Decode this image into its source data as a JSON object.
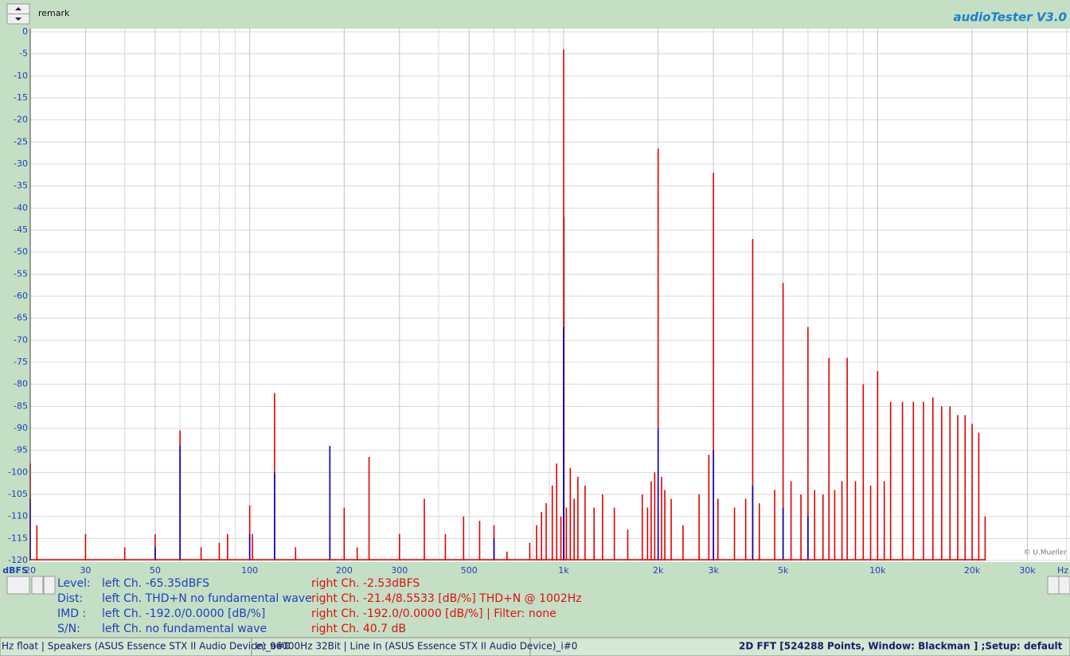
{
  "header": {
    "remark": "remark",
    "app": "audioTester  V3.0",
    "copyright": "© U.Mueller"
  },
  "chart_data": {
    "type": "stem",
    "xlabel": "Hz",
    "ylabel": "dBFS",
    "log_x": true,
    "grid": true,
    "xlim": [
      20,
      41000
    ],
    "ylim": [
      -120,
      0
    ],
    "xticks": [
      20,
      30,
      50,
      100,
      200,
      300,
      500,
      {
        "value": 1000,
        "label": "1k"
      },
      {
        "value": 2000,
        "label": "2k"
      },
      {
        "value": 3000,
        "label": "3k"
      },
      {
        "value": 5000,
        "label": "5k"
      },
      {
        "value": 10000,
        "label": "10k"
      },
      {
        "value": 20000,
        "label": "20k"
      },
      {
        "value": 30000,
        "label": "30k"
      }
    ],
    "xminor": [
      40,
      60,
      70,
      80,
      90,
      400,
      600,
      700,
      800,
      900,
      4000,
      6000,
      7000,
      8000,
      9000,
      40000
    ],
    "yticks": [
      0,
      -5,
      -10,
      -15,
      -20,
      -25,
      -30,
      -35,
      -40,
      -45,
      -50,
      -55,
      -60,
      -65,
      -70,
      -75,
      -80,
      -85,
      -90,
      -95,
      -100,
      -105,
      -110,
      -115,
      -120
    ],
    "series": [
      {
        "color": "#e00000",
        "x": [
          20,
          21,
          30,
          40,
          50,
          60,
          70,
          80,
          85,
          100,
          102,
          120,
          140,
          180,
          200,
          220,
          240,
          300,
          360,
          420,
          480,
          540,
          600,
          660,
          780,
          820,
          850,
          880,
          920,
          950,
          980,
          1000,
          1002,
          1020,
          1050,
          1080,
          1110,
          1170,
          1250,
          1330,
          1450,
          1600,
          1780,
          1850,
          1900,
          1950,
          2000,
          2050,
          2100,
          2200,
          2400,
          2700,
          2900,
          3000,
          3100,
          3500,
          3800,
          4000,
          4200,
          4700,
          5000,
          5300,
          5700,
          6000,
          6300,
          6700,
          7000,
          7300,
          7700,
          8000,
          8500,
          9000,
          9500,
          10000,
          10500,
          11000,
          12000,
          13000,
          14000,
          15000,
          16000,
          17000,
          18000,
          19000,
          20000,
          21000,
          22000
        ],
        "values": [
          -98,
          -112,
          -114,
          -117,
          -114,
          -90.5,
          -117,
          -116,
          -114,
          -107.5,
          -114,
          -82,
          -117,
          -100,
          -108,
          -117,
          -96.5,
          -114,
          -106,
          -114,
          -110,
          -111,
          -112,
          -118,
          -116,
          -112,
          -109,
          -107,
          -103,
          -98,
          -110,
          -4,
          -42,
          -108,
          -99,
          -106,
          -101,
          -103,
          -108,
          -105,
          -108,
          -113,
          -105,
          -108,
          -102,
          -100,
          -26.5,
          -101,
          -104,
          -106,
          -112,
          -105,
          -96,
          -32,
          -106,
          -108,
          -106,
          -47,
          -107,
          -104,
          -57,
          -102,
          -105,
          -67,
          -104,
          -105,
          -74,
          -104,
          -102,
          -74,
          -102,
          -80,
          -103,
          -77,
          -102,
          -84,
          -84,
          -84,
          -84,
          -83,
          -85,
          -85,
          -87,
          -87,
          -89,
          -91,
          -110
        ]
      },
      {
        "color": "#0000c0",
        "x": [
          20,
          50,
          60,
          100,
          120,
          180,
          600,
          1000,
          2000,
          3000,
          4000,
          5000,
          6000
        ],
        "values": [
          -106,
          -117,
          -94,
          -114,
          -100,
          -94,
          -115,
          -67,
          -90,
          -95,
          -103,
          -108,
          -110
        ]
      }
    ]
  },
  "info": {
    "rows": [
      {
        "label": "Level:",
        "left": "left Ch. -65.35dBFS",
        "right": "right Ch. -2.53dBFS"
      },
      {
        "label": "Dist:",
        "left": "left Ch. THD+N  no fundamental wave",
        "right": "right Ch. -21.4/8.5533 [dB/%] THD+N  @ 1002Hz"
      },
      {
        "label": "IMD  :",
        "left": "left Ch. -192.0/0.0000 [dB/%]",
        "right": "right Ch. -192.0/0.0000 [dB/%] |   Filter: none"
      },
      {
        "label": "S/N:",
        "left": "left Ch.  no fundamental wave",
        "right": "right Ch. 40.7 dB"
      }
    ]
  },
  "status": {
    "out": "Hz float  | Speakers (ASUS Essence STX II Audio Device)_o#0",
    "in": "In: 96000Hz 32Bit  | Line In (ASUS Essence STX II Audio Device)_i#0",
    "fft": "2D FFT [524288 Points, Window: Blackman ] ;Setup:  default"
  }
}
